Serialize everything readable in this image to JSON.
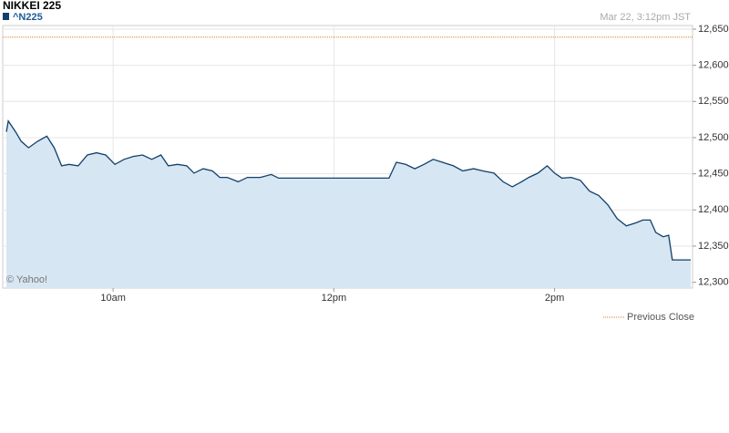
{
  "chart_data": {
    "type": "line",
    "title": "NIKKEI 225",
    "timestamp": "Mar 22, 3:12pm JST",
    "credit": "© Yahoo!",
    "x": [
      542,
      543,
      547,
      550,
      554,
      559,
      564,
      568,
      572,
      576,
      581,
      586,
      591,
      596,
      601,
      606,
      611,
      616,
      621,
      626,
      630,
      635,
      640,
      644,
      649,
      654,
      658,
      662,
      668,
      673,
      680,
      686,
      690,
      750,
      754,
      759,
      764,
      769,
      774,
      779,
      785,
      790,
      796,
      801,
      807,
      812,
      817,
      822,
      826,
      831,
      836,
      840,
      844,
      849,
      854,
      859,
      864,
      869,
      874,
      879,
      884,
      888,
      892,
      895,
      899,
      902,
      904,
      914
    ],
    "series": [
      {
        "name": "^N225",
        "color": "#123f6b",
        "fill": "#d6e6f2",
        "values": [
          12508,
          12523,
          12508,
          12495,
          12486,
          12495,
          12502,
          12486,
          12461,
          12463,
          12461,
          12476,
          12479,
          12476,
          12463,
          12470,
          12474,
          12476,
          12470,
          12476,
          12461,
          12463,
          12461,
          12451,
          12457,
          12454,
          12445,
          12445,
          12439,
          12445,
          12445,
          12449,
          12444,
          12444,
          12466,
          12463,
          12457,
          12463,
          12470,
          12466,
          12461,
          12454,
          12457,
          12454,
          12451,
          12439,
          12432,
          12439,
          12445,
          12451,
          12461,
          12451,
          12444,
          12445,
          12441,
          12426,
          12420,
          12407,
          12388,
          12378,
          12382,
          12386,
          12386,
          12369,
          12363,
          12365,
          12331,
          12331
        ]
      }
    ],
    "previous_close": {
      "name": "Previous Close",
      "value": 12639,
      "color": "#d9822b"
    },
    "xlim": [
      540,
      915
    ],
    "xticks": [
      {
        "value": 600,
        "label": "10am"
      },
      {
        "value": 720,
        "label": "12pm"
      },
      {
        "value": 840,
        "label": "2pm"
      }
    ],
    "ylim": [
      12292,
      12655
    ],
    "yticks": [
      {
        "value": 12300,
        "label": "12,300"
      },
      {
        "value": 12350,
        "label": "12,350"
      },
      {
        "value": 12400,
        "label": "12,400"
      },
      {
        "value": 12450,
        "label": "12,450"
      },
      {
        "value": 12500,
        "label": "12,500"
      },
      {
        "value": 12550,
        "label": "12,550"
      },
      {
        "value": 12600,
        "label": "12,600"
      },
      {
        "value": 12650,
        "label": "12,650"
      }
    ],
    "grid": true
  }
}
